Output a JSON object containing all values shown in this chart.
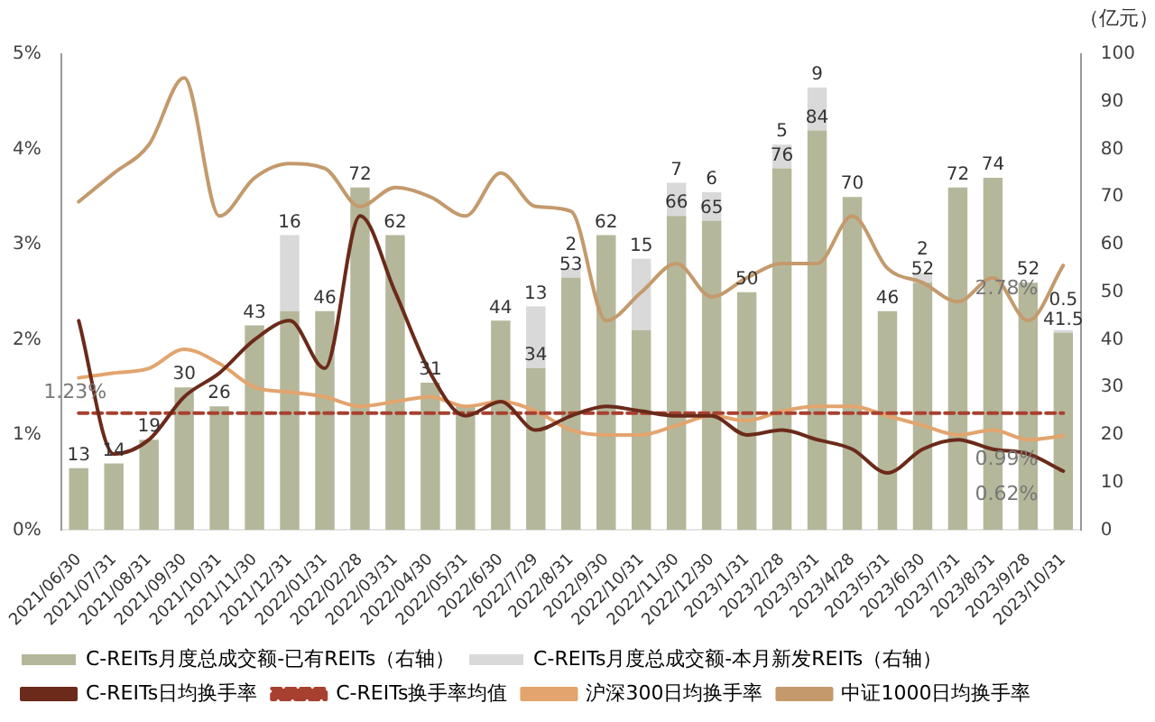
{
  "chart_data": {
    "type": "bar",
    "y2label": "（亿元）",
    "categories": [
      "2021/06/30",
      "2021/07/31",
      "2021/08/31",
      "2021/09/30",
      "2021/10/31",
      "2021/11/30",
      "2021/12/31",
      "2022/01/31",
      "2022/02/28",
      "2022/03/31",
      "2022/04/30",
      "2022/05/31",
      "2022/6/30",
      "2022/7/29",
      "2022/8/31",
      "2022/9/30",
      "2022/10/31",
      "2022/11/30",
      "2022/12/30",
      "2023/1/31",
      "2023/2/28",
      "2023/3/31",
      "2023/4/28",
      "2023/5/31",
      "2023/6/30",
      "2023/7/31",
      "2023/8/31",
      "2023/9/28",
      "2023/10/31"
    ],
    "stacked": true,
    "series": [
      {
        "name": "C-REITs月度总成交额-已有REITs（右轴）",
        "axis": "y2",
        "color": "#b5b79a",
        "values": [
          13,
          14,
          19,
          30,
          26,
          43,
          46,
          46,
          72,
          62,
          31,
          26,
          44,
          34,
          53,
          62,
          42,
          66,
          65,
          50,
          76,
          84,
          70,
          46,
          52,
          72,
          74,
          52,
          41.5
        ],
        "value_labels": [
          "13",
          "14",
          "19",
          "30",
          "26",
          "43",
          null,
          "46",
          "72",
          "62",
          "31",
          null,
          "44",
          "34",
          "53",
          "62",
          null,
          "66",
          "65",
          "50",
          "76",
          "84",
          "70",
          "46",
          "52",
          "72",
          "74",
          "52",
          "41.5"
        ]
      },
      {
        "name": "C-REITs月度总成交额-本月新发REITs（右轴）",
        "axis": "y2",
        "color": "#d9d9d9",
        "values": [
          null,
          null,
          null,
          null,
          null,
          null,
          16,
          null,
          null,
          null,
          null,
          null,
          null,
          13,
          2,
          null,
          15,
          7,
          6,
          null,
          5,
          9,
          null,
          null,
          2,
          null,
          null,
          null,
          0.5
        ],
        "value_labels": [
          null,
          null,
          null,
          null,
          null,
          null,
          "16",
          null,
          null,
          null,
          null,
          null,
          null,
          "13",
          "2",
          null,
          "15",
          "7",
          "6",
          null,
          "5",
          "9",
          null,
          null,
          "2",
          null,
          null,
          null,
          "0.5"
        ]
      },
      {
        "name": "C-REITs日均换手率",
        "type": "line",
        "color": "#6b2a1a",
        "values": [
          2.2,
          0.8,
          0.95,
          1.4,
          1.65,
          2.0,
          2.2,
          1.7,
          3.3,
          2.5,
          1.65,
          1.2,
          1.35,
          1.05,
          1.2,
          1.3,
          1.25,
          1.2,
          1.2,
          1.0,
          1.05,
          0.95,
          0.85,
          0.6,
          0.85,
          0.95,
          0.85,
          0.8,
          0.62
        ],
        "value_labels": [
          null,
          null,
          null,
          null,
          null,
          null,
          null,
          null,
          null,
          null,
          null,
          null,
          null,
          null,
          null,
          null,
          null,
          null,
          null,
          null,
          null,
          null,
          null,
          null,
          null,
          null,
          null,
          null,
          "0.62%"
        ]
      },
      {
        "name": "C-REITs换手率均值",
        "type": "line",
        "line_style": "dashed",
        "color": "#a8402f",
        "values": [
          1.23,
          1.23,
          1.23,
          1.23,
          1.23,
          1.23,
          1.23,
          1.23,
          1.23,
          1.23,
          1.23,
          1.23,
          1.23,
          1.23,
          1.23,
          1.23,
          1.23,
          1.23,
          1.23,
          1.23,
          1.23,
          1.23,
          1.23,
          1.23,
          1.23,
          1.23,
          1.23,
          1.23,
          1.23
        ],
        "value_labels": [
          "1.23%",
          null,
          null,
          null,
          null,
          null,
          null,
          null,
          null,
          null,
          null,
          null,
          null,
          null,
          null,
          null,
          null,
          null,
          null,
          null,
          null,
          null,
          null,
          null,
          null,
          null,
          null,
          null,
          null
        ]
      },
      {
        "name": "沪深300日均换手率",
        "type": "line",
        "color": "#e3a46e",
        "values": [
          1.6,
          1.65,
          1.7,
          1.9,
          1.75,
          1.5,
          1.45,
          1.4,
          1.3,
          1.35,
          1.4,
          1.3,
          1.35,
          1.25,
          1.05,
          1.0,
          1.0,
          1.1,
          1.2,
          1.15,
          1.25,
          1.3,
          1.3,
          1.2,
          1.1,
          1.0,
          1.05,
          0.95,
          0.99
        ],
        "value_labels": [
          null,
          null,
          null,
          null,
          null,
          null,
          null,
          null,
          null,
          null,
          null,
          null,
          null,
          null,
          null,
          null,
          null,
          null,
          null,
          null,
          null,
          null,
          null,
          null,
          null,
          null,
          null,
          null,
          "0.99%"
        ]
      },
      {
        "name": "中证1000日均换手率",
        "type": "line",
        "color": "#c49a6c",
        "values": [
          3.45,
          3.75,
          4.05,
          4.75,
          3.3,
          3.7,
          3.85,
          3.8,
          3.4,
          3.6,
          3.5,
          3.3,
          3.75,
          3.4,
          3.35,
          2.2,
          2.5,
          2.8,
          2.45,
          2.65,
          2.8,
          2.8,
          3.3,
          2.75,
          2.6,
          2.4,
          2.65,
          2.2,
          2.78
        ],
        "value_labels": [
          null,
          null,
          null,
          null,
          null,
          null,
          null,
          null,
          null,
          null,
          null,
          null,
          null,
          null,
          null,
          null,
          null,
          null,
          null,
          null,
          null,
          null,
          null,
          null,
          null,
          null,
          null,
          null,
          "2.78%"
        ]
      }
    ],
    "ylim": [
      0,
      5
    ],
    "yticks": [
      {
        "value": 0,
        "label": "0%"
      },
      {
        "value": 1,
        "label": "1%"
      },
      {
        "value": 2,
        "label": "2%"
      },
      {
        "value": 3,
        "label": "3%"
      },
      {
        "value": 4,
        "label": "4%"
      },
      {
        "value": 5,
        "label": "5%"
      }
    ],
    "y2lim": [
      0,
      100
    ],
    "y2ticks": [
      0,
      10,
      20,
      30,
      40,
      50,
      60,
      70,
      80,
      90,
      100
    ],
    "legend": "bottom",
    "marker": "none"
  }
}
